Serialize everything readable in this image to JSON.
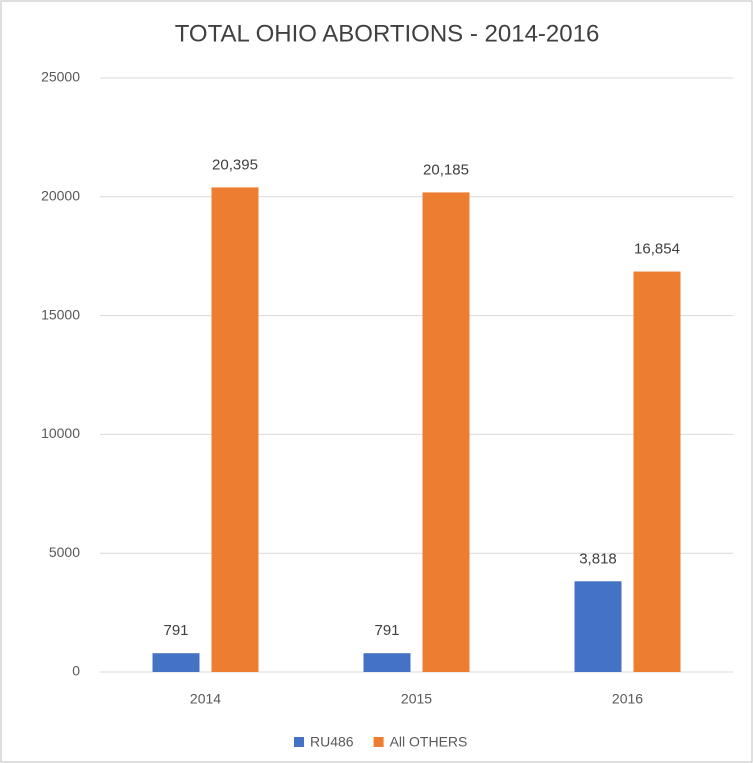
{
  "chart_data": {
    "type": "bar",
    "title": "TOTAL OHIO ABORTIONS - 2014-2016",
    "categories": [
      "2014",
      "2015",
      "2016"
    ],
    "series": [
      {
        "name": "RU486",
        "color": "#4472c4",
        "values": [
          791,
          791,
          3818
        ],
        "value_labels": [
          "791",
          "791",
          "3,818"
        ]
      },
      {
        "name": "All OTHERS",
        "color": "#ed7d31",
        "values": [
          20395,
          20185,
          16854
        ],
        "value_labels": [
          "20,395",
          "20,185",
          "16,854"
        ]
      }
    ],
    "ylim": [
      0,
      25000
    ],
    "yticks": [
      0,
      5000,
      10000,
      15000,
      20000,
      25000
    ],
    "grid": true,
    "legend": "bottom"
  }
}
